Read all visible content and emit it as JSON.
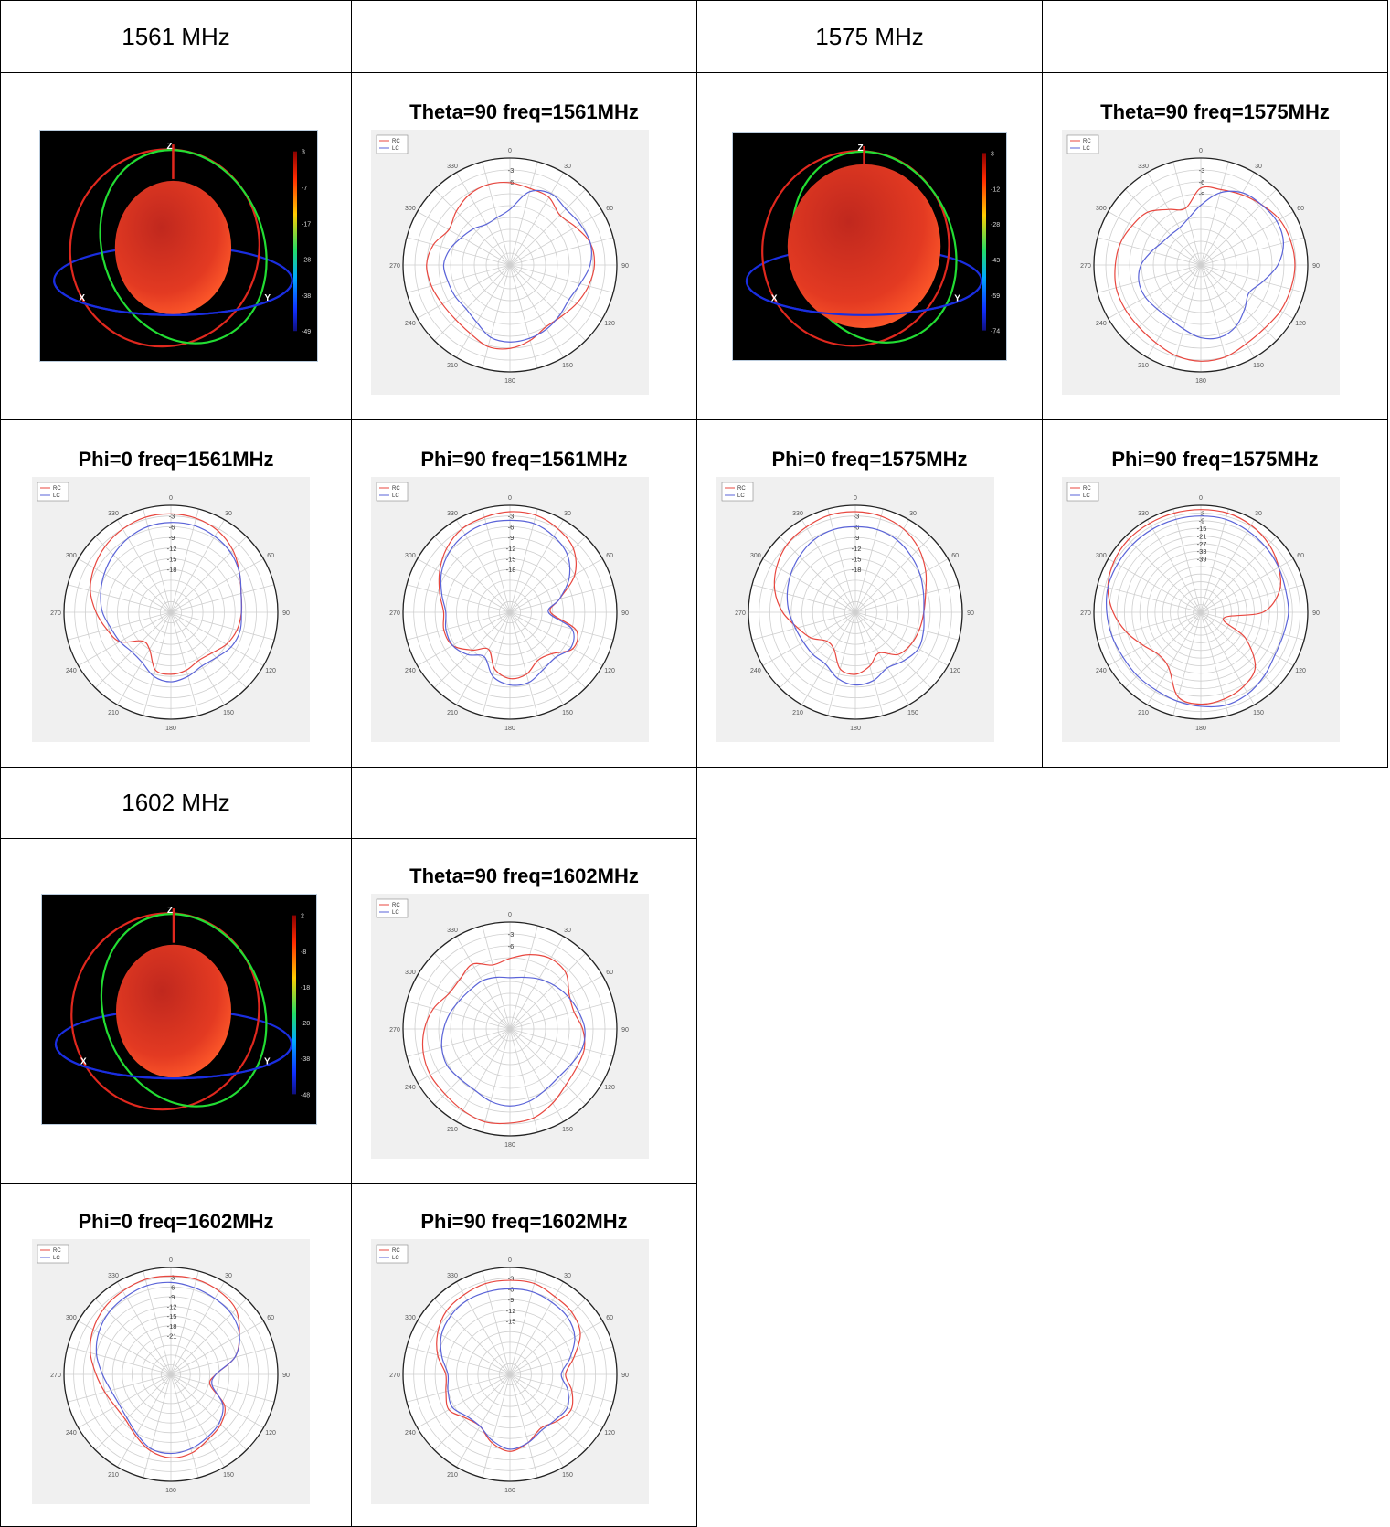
{
  "table": {
    "freq_1561": "1561 MHz",
    "freq_1575": "1575 MHz",
    "freq_1602": "1602 MHz"
  },
  "legend": {
    "rc": "RC",
    "lc": "LC"
  },
  "colors": {
    "rc": "#e8473f",
    "lc": "#5a63d8",
    "grid": "#cfcfcf",
    "bg": "#f0f0f0"
  },
  "angle_labels": [
    "0",
    "30",
    "60",
    "90",
    "120",
    "150",
    "180",
    "210",
    "240",
    "270",
    "300",
    "330"
  ],
  "views_3d": [
    {
      "id": "3d-1561",
      "colorbar_ticks": [
        "3",
        "-7",
        "-17",
        "-28",
        "-38",
        "-49"
      ]
    },
    {
      "id": "3d-1575",
      "colorbar_ticks": [
        "3",
        "-12",
        "-28",
        "-43",
        "-59",
        "-74"
      ]
    },
    {
      "id": "3d-1602",
      "colorbar_ticks": [
        "2",
        "-8",
        "-18",
        "-28",
        "-38",
        "-48"
      ]
    }
  ],
  "chart_data": [
    {
      "id": "p1",
      "type": "polar",
      "title": "Theta=90 freq=1561MHz",
      "radial_ticks": [
        "-3",
        "-6"
      ],
      "rings": 9,
      "series": [
        {
          "name": "RC",
          "r": [
            0.77,
            0.74,
            0.73,
            0.66,
            0.71,
            0.78,
            0.79,
            0.76,
            0.72,
            0.68,
            0.67,
            0.73,
            0.78,
            0.79,
            0.74,
            0.72,
            0.73,
            0.76,
            0.78,
            0.74,
            0.66,
            0.71,
            0.76,
            0.78
          ]
        },
        {
          "name": "LC",
          "r": [
            0.52,
            0.71,
            0.77,
            0.74,
            0.76,
            0.78,
            0.75,
            0.68,
            0.64,
            0.66,
            0.69,
            0.71,
            0.72,
            0.7,
            0.62,
            0.58,
            0.59,
            0.6,
            0.62,
            0.58,
            0.52,
            0.48,
            0.44,
            0.46
          ]
        }
      ]
    },
    {
      "id": "p2",
      "type": "polar",
      "title": "Theta=90 freq=1575MHz",
      "radial_ticks": [
        "-3",
        "-6",
        "-9"
      ],
      "rings": 9,
      "series": [
        {
          "name": "RC",
          "r": [
            0.72,
            0.73,
            0.76,
            0.8,
            0.85,
            0.87,
            0.88,
            0.87,
            0.86,
            0.84,
            0.85,
            0.89,
            0.9,
            0.88,
            0.84,
            0.82,
            0.82,
            0.82,
            0.8,
            0.78,
            0.74,
            0.7,
            0.6,
            0.55
          ]
        },
        {
          "name": "LC",
          "r": [
            0.56,
            0.7,
            0.78,
            0.8,
            0.82,
            0.8,
            0.72,
            0.6,
            0.52,
            0.58,
            0.66,
            0.7,
            0.68,
            0.62,
            0.58,
            0.58,
            0.6,
            0.6,
            0.56,
            0.48,
            0.42,
            0.4,
            0.4,
            0.45
          ]
        }
      ]
    },
    {
      "id": "p3",
      "type": "polar",
      "title": "Phi=0 freq=1561MHz",
      "radial_ticks": [
        "-3",
        "-6",
        "-9",
        "-12",
        "-15",
        "-18"
      ],
      "rings": 10,
      "series": [
        {
          "name": "RC",
          "r": [
            0.92,
            0.91,
            0.88,
            0.82,
            0.74,
            0.68,
            0.66,
            0.64,
            0.6,
            0.54,
            0.52,
            0.56,
            0.58,
            0.56,
            0.4,
            0.38,
            0.55,
            0.62,
            0.7,
            0.78,
            0.83,
            0.87,
            0.9,
            0.92
          ]
        },
        {
          "name": "LC",
          "r": [
            0.84,
            0.84,
            0.82,
            0.79,
            0.74,
            0.68,
            0.66,
            0.67,
            0.65,
            0.6,
            0.58,
            0.62,
            0.65,
            0.62,
            0.54,
            0.52,
            0.55,
            0.58,
            0.64,
            0.68,
            0.72,
            0.76,
            0.8,
            0.83
          ]
        }
      ]
    },
    {
      "id": "p4",
      "type": "polar",
      "title": "Phi=90 freq=1561MHz",
      "radial_ticks": [
        "-3",
        "-6",
        "-9",
        "-12",
        "-15",
        "-18"
      ],
      "rings": 10,
      "series": [
        {
          "name": "RC",
          "r": [
            0.94,
            0.94,
            0.9,
            0.84,
            0.7,
            0.48,
            0.38,
            0.64,
            0.68,
            0.55,
            0.52,
            0.6,
            0.62,
            0.55,
            0.4,
            0.5,
            0.62,
            0.64,
            0.62,
            0.68,
            0.76,
            0.84,
            0.9,
            0.92
          ]
        },
        {
          "name": "LC",
          "r": [
            0.86,
            0.86,
            0.82,
            0.76,
            0.64,
            0.48,
            0.36,
            0.6,
            0.66,
            0.6,
            0.62,
            0.68,
            0.68,
            0.62,
            0.48,
            0.56,
            0.62,
            0.62,
            0.6,
            0.66,
            0.74,
            0.8,
            0.84,
            0.86
          ]
        }
      ]
    },
    {
      "id": "p5",
      "type": "polar",
      "title": "Phi=0 freq=1575MHz",
      "radial_ticks": [
        "-3",
        "-6",
        "-9",
        "-12",
        "-15",
        "-18"
      ],
      "rings": 10,
      "series": [
        {
          "name": "RC",
          "r": [
            0.94,
            0.93,
            0.9,
            0.84,
            0.76,
            0.68,
            0.64,
            0.62,
            0.6,
            0.56,
            0.44,
            0.52,
            0.58,
            0.55,
            0.4,
            0.38,
            0.48,
            0.56,
            0.68,
            0.78,
            0.85,
            0.9,
            0.92,
            0.94
          ]
        },
        {
          "name": "LC",
          "r": [
            0.8,
            0.8,
            0.78,
            0.74,
            0.7,
            0.66,
            0.64,
            0.66,
            0.68,
            0.64,
            0.6,
            0.66,
            0.68,
            0.64,
            0.56,
            0.56,
            0.56,
            0.58,
            0.62,
            0.66,
            0.7,
            0.74,
            0.78,
            0.8
          ]
        }
      ]
    },
    {
      "id": "p6",
      "type": "polar",
      "title": "Phi=90 freq=1575MHz",
      "radial_ticks": [
        "-3",
        "-9",
        "-15",
        "-21",
        "-27",
        "-33",
        "-39"
      ],
      "rings": 14,
      "series": [
        {
          "name": "RC",
          "r": [
            0.96,
            0.96,
            0.94,
            0.9,
            0.84,
            0.76,
            0.58,
            0.22,
            0.48,
            0.72,
            0.8,
            0.84,
            0.86,
            0.82,
            0.6,
            0.56,
            0.62,
            0.72,
            0.82,
            0.9,
            0.94,
            0.96,
            0.96,
            0.96
          ]
        },
        {
          "name": "LC",
          "r": [
            0.9,
            0.9,
            0.88,
            0.86,
            0.84,
            0.82,
            0.82,
            0.8,
            0.8,
            0.84,
            0.88,
            0.9,
            0.88,
            0.86,
            0.84,
            0.84,
            0.84,
            0.86,
            0.88,
            0.9,
            0.9,
            0.9,
            0.9,
            0.9
          ]
        }
      ]
    },
    {
      "id": "p7",
      "type": "polar",
      "title": "Theta=90 freq=1602MHz",
      "radial_ticks": [
        "-3",
        "-6"
      ],
      "rings": 9,
      "series": [
        {
          "name": "RC",
          "r": [
            0.66,
            0.72,
            0.76,
            0.74,
            0.64,
            0.62,
            0.68,
            0.72,
            0.72,
            0.74,
            0.8,
            0.86,
            0.88,
            0.9,
            0.88,
            0.86,
            0.86,
            0.84,
            0.8,
            0.74,
            0.66,
            0.66,
            0.7,
            0.62
          ]
        },
        {
          "name": "LC",
          "r": [
            0.48,
            0.5,
            0.54,
            0.58,
            0.62,
            0.66,
            0.7,
            0.7,
            0.66,
            0.64,
            0.66,
            0.7,
            0.72,
            0.7,
            0.66,
            0.66,
            0.68,
            0.66,
            0.62,
            0.58,
            0.54,
            0.52,
            0.52,
            0.5
          ]
        }
      ]
    },
    {
      "id": "p8",
      "type": "polar",
      "title": "Phi=0 freq=1602MHz",
      "radial_ticks": [
        "-3",
        "-6",
        "-9",
        "-12",
        "-15",
        "-18",
        "-21"
      ],
      "rings": 11,
      "series": [
        {
          "name": "RC",
          "r": [
            0.92,
            0.92,
            0.9,
            0.86,
            0.74,
            0.62,
            0.42,
            0.38,
            0.58,
            0.66,
            0.7,
            0.76,
            0.78,
            0.74,
            0.66,
            0.6,
            0.6,
            0.64,
            0.7,
            0.78,
            0.84,
            0.88,
            0.9,
            0.92
          ]
        },
        {
          "name": "LC",
          "r": [
            0.86,
            0.84,
            0.82,
            0.8,
            0.74,
            0.62,
            0.42,
            0.4,
            0.56,
            0.64,
            0.68,
            0.72,
            0.74,
            0.72,
            0.64,
            0.58,
            0.56,
            0.58,
            0.64,
            0.72,
            0.78,
            0.82,
            0.84,
            0.86
          ]
        }
      ]
    },
    {
      "id": "p9",
      "type": "polar",
      "title": "Phi=90 freq=1602MHz",
      "radial_ticks": [
        "-3",
        "-6",
        "-9",
        "-12",
        "-15"
      ],
      "rings": 10,
      "series": [
        {
          "name": "RC",
          "r": [
            0.88,
            0.88,
            0.84,
            0.82,
            0.76,
            0.62,
            0.52,
            0.6,
            0.66,
            0.62,
            0.58,
            0.66,
            0.72,
            0.66,
            0.56,
            0.58,
            0.66,
            0.62,
            0.6,
            0.7,
            0.78,
            0.84,
            0.86,
            0.88
          ]
        },
        {
          "name": "LC",
          "r": [
            0.8,
            0.8,
            0.78,
            0.76,
            0.7,
            0.58,
            0.48,
            0.56,
            0.62,
            0.6,
            0.6,
            0.66,
            0.7,
            0.64,
            0.56,
            0.56,
            0.62,
            0.6,
            0.58,
            0.66,
            0.74,
            0.78,
            0.8,
            0.8
          ]
        }
      ]
    }
  ]
}
